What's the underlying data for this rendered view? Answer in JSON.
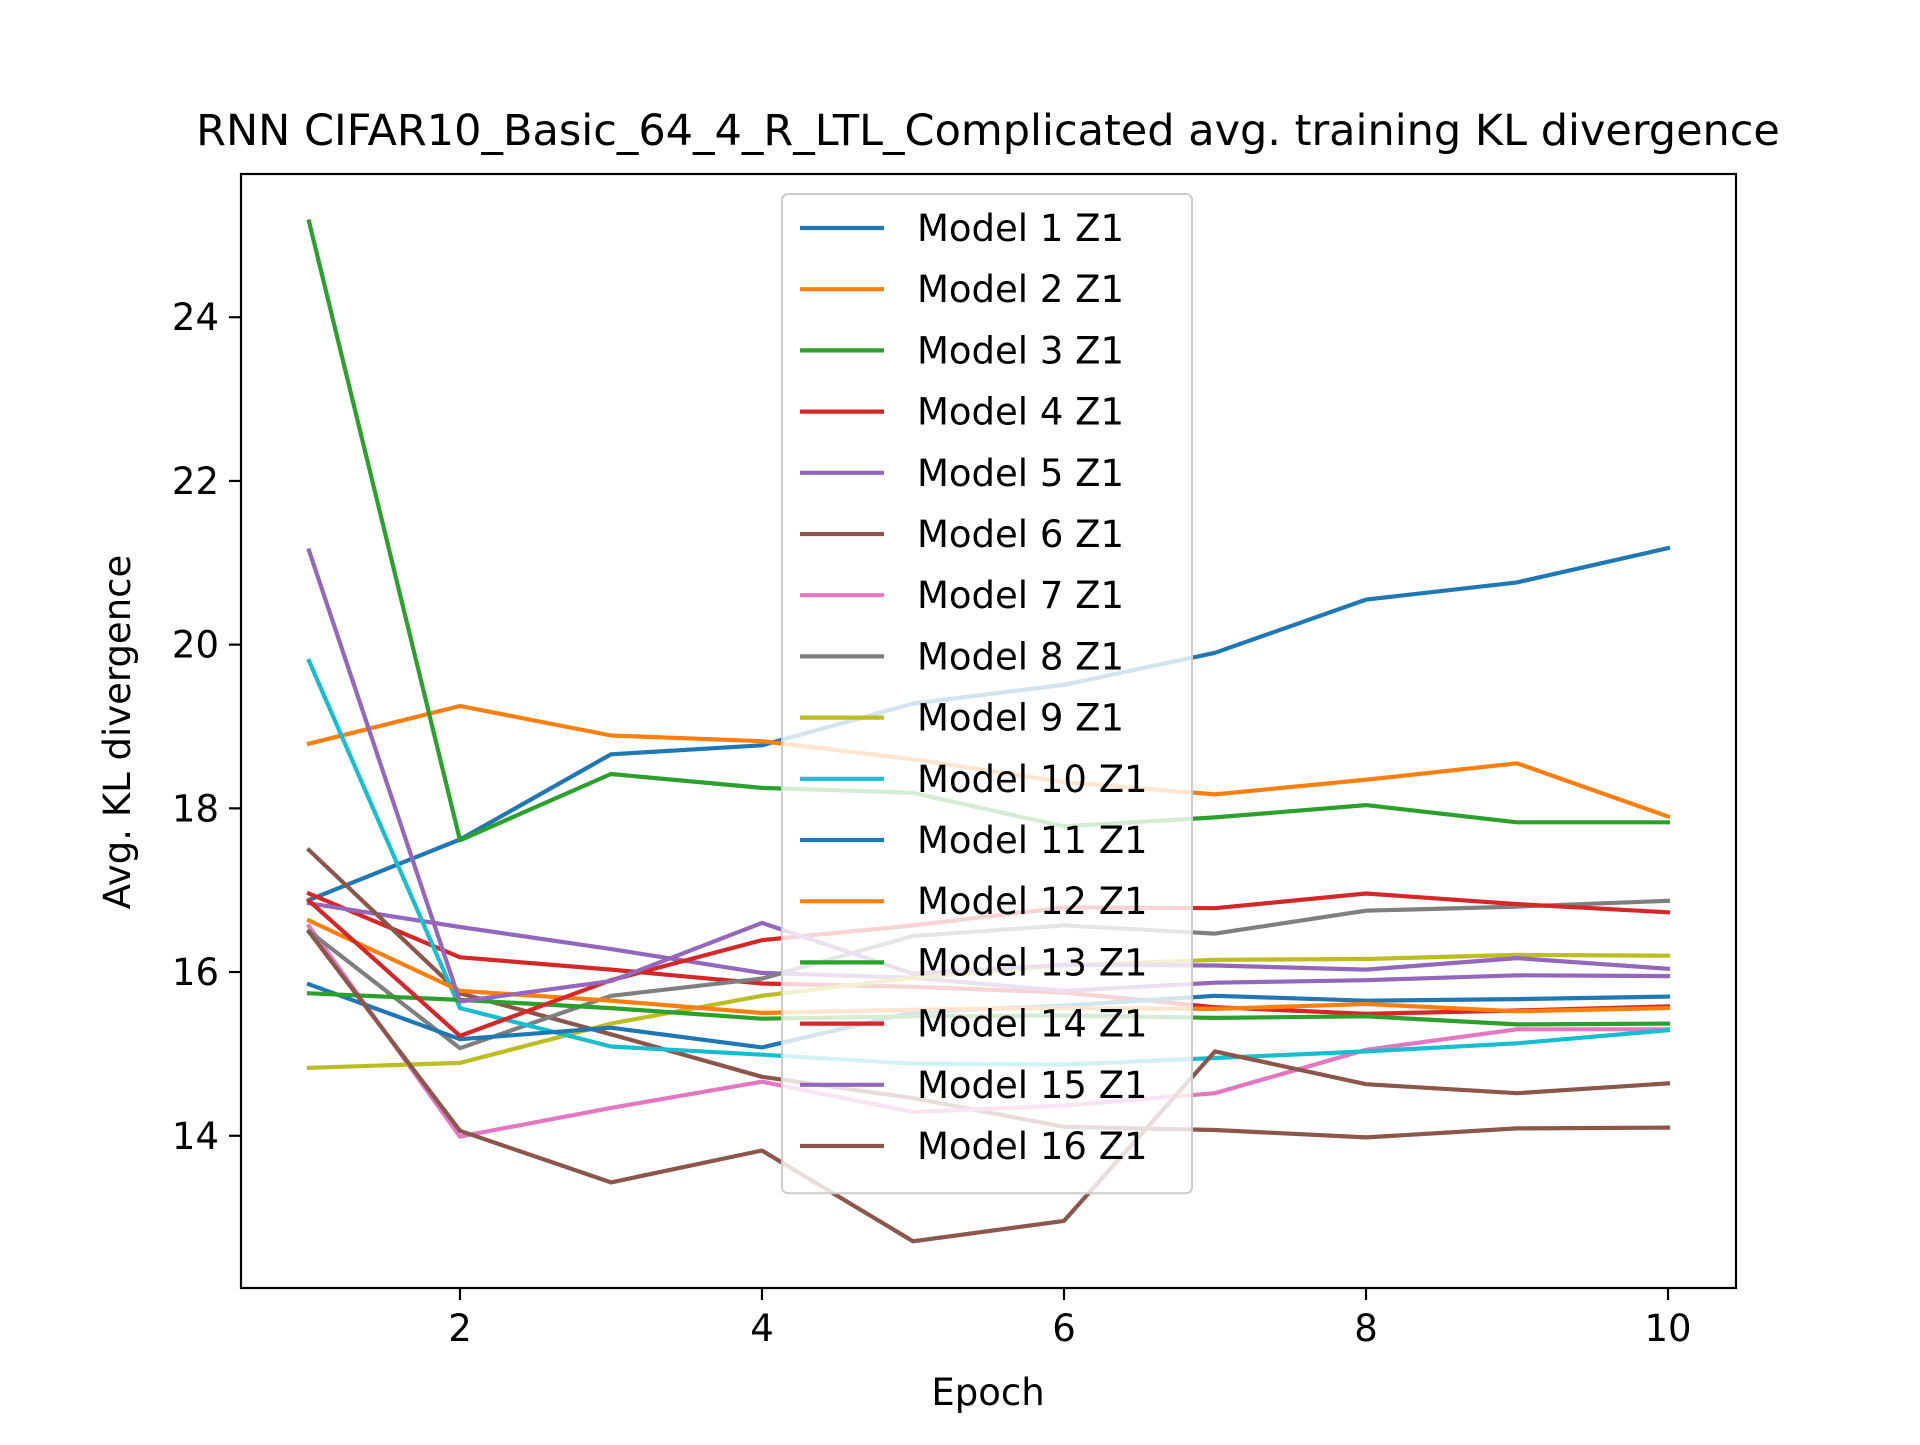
{
  "chart_data": {
    "type": "line",
    "title": "RNN CIFAR10_Basic_64_4_R_LTL_Complicated avg. training KL divergence",
    "xlabel": "Epoch",
    "ylabel": "Avg. KL divergence",
    "xlim": [
      0.55,
      10.45
    ],
    "ylim": [
      12.14,
      25.75
    ],
    "x_ticks": [
      2,
      4,
      6,
      8,
      10
    ],
    "x_tick_labels": [
      "2",
      "4",
      "6",
      "8",
      "10"
    ],
    "y_ticks": [
      14,
      16,
      18,
      20,
      22,
      24
    ],
    "y_tick_labels": [
      "14",
      "16",
      "18",
      "20",
      "22",
      "24"
    ],
    "grid": false,
    "legend_position": "top-center",
    "x": [
      1,
      2,
      3,
      4,
      5,
      6,
      7,
      8,
      9,
      10
    ],
    "series": [
      {
        "name": "Model 1 Z1",
        "color": "#1f77b4",
        "values": [
          16.88,
          17.62,
          18.66,
          18.77,
          19.28,
          19.51,
          19.9,
          20.55,
          20.76,
          21.18
        ]
      },
      {
        "name": "Model 2 Z1",
        "color": "#ff7f0e",
        "values": [
          18.79,
          19.25,
          18.89,
          18.82,
          18.6,
          18.32,
          18.17,
          18.35,
          18.55,
          17.9
        ]
      },
      {
        "name": "Model 3 Z1",
        "color": "#2ca02c",
        "values": [
          25.17,
          17.61,
          18.42,
          18.25,
          18.19,
          17.78,
          17.89,
          18.04,
          17.83,
          17.83
        ]
      },
      {
        "name": "Model 4 Z1",
        "color": "#d62728",
        "values": [
          16.96,
          16.18,
          16.03,
          15.86,
          15.82,
          15.75,
          15.57,
          15.49,
          15.53,
          15.58
        ]
      },
      {
        "name": "Model 5 Z1",
        "color": "#9467bd",
        "values": [
          16.84,
          16.55,
          16.28,
          15.99,
          15.93,
          15.77,
          15.87,
          15.9,
          15.96,
          15.95
        ]
      },
      {
        "name": "Model 6 Z1",
        "color": "#8c564b",
        "values": [
          17.49,
          15.74,
          15.24,
          14.72,
          14.46,
          14.11,
          14.07,
          13.98,
          14.09,
          14.1
        ]
      },
      {
        "name": "Model 7 Z1",
        "color": "#e377c2",
        "values": [
          16.56,
          13.99,
          14.34,
          14.66,
          14.29,
          14.37,
          14.52,
          15.05,
          15.3,
          15.3
        ]
      },
      {
        "name": "Model 8 Z1",
        "color": "#7f7f7f",
        "values": [
          16.5,
          15.07,
          15.71,
          15.92,
          16.44,
          16.57,
          16.47,
          16.75,
          16.8,
          16.87
        ]
      },
      {
        "name": "Model 9 Z1",
        "color": "#bcbd22",
        "values": [
          14.83,
          14.89,
          15.37,
          15.71,
          15.93,
          16.08,
          16.15,
          16.16,
          16.21,
          16.2
        ]
      },
      {
        "name": "Model 10 Z1",
        "color": "#17becf",
        "values": [
          19.8,
          15.56,
          15.09,
          14.99,
          14.88,
          14.87,
          14.95,
          15.03,
          15.13,
          15.29
        ]
      },
      {
        "name": "Model 11 Z1",
        "color": "#1f77b4",
        "values": [
          15.85,
          15.18,
          15.32,
          15.08,
          15.51,
          15.59,
          15.71,
          15.65,
          15.67,
          15.7
        ]
      },
      {
        "name": "Model 12 Z1",
        "color": "#ff7f0e",
        "values": [
          16.63,
          15.77,
          15.65,
          15.5,
          15.54,
          15.56,
          15.55,
          15.61,
          15.52,
          15.56
        ]
      },
      {
        "name": "Model 13 Z1",
        "color": "#2ca02c",
        "values": [
          15.74,
          15.66,
          15.56,
          15.43,
          15.46,
          15.47,
          15.44,
          15.46,
          15.36,
          15.37
        ]
      },
      {
        "name": "Model 14 Z1",
        "color": "#d62728",
        "values": [
          16.87,
          15.22,
          15.9,
          16.39,
          16.57,
          16.79,
          16.78,
          16.96,
          16.83,
          16.73
        ]
      },
      {
        "name": "Model 15 Z1",
        "color": "#9467bd",
        "values": [
          21.15,
          15.64,
          15.89,
          16.6,
          15.98,
          16.09,
          16.08,
          16.03,
          16.17,
          16.04
        ]
      },
      {
        "name": "Model 16 Z1",
        "color": "#8c564b",
        "values": [
          16.49,
          14.06,
          13.43,
          13.82,
          12.71,
          12.96,
          15.03,
          14.63,
          14.52,
          14.64
        ]
      }
    ]
  }
}
